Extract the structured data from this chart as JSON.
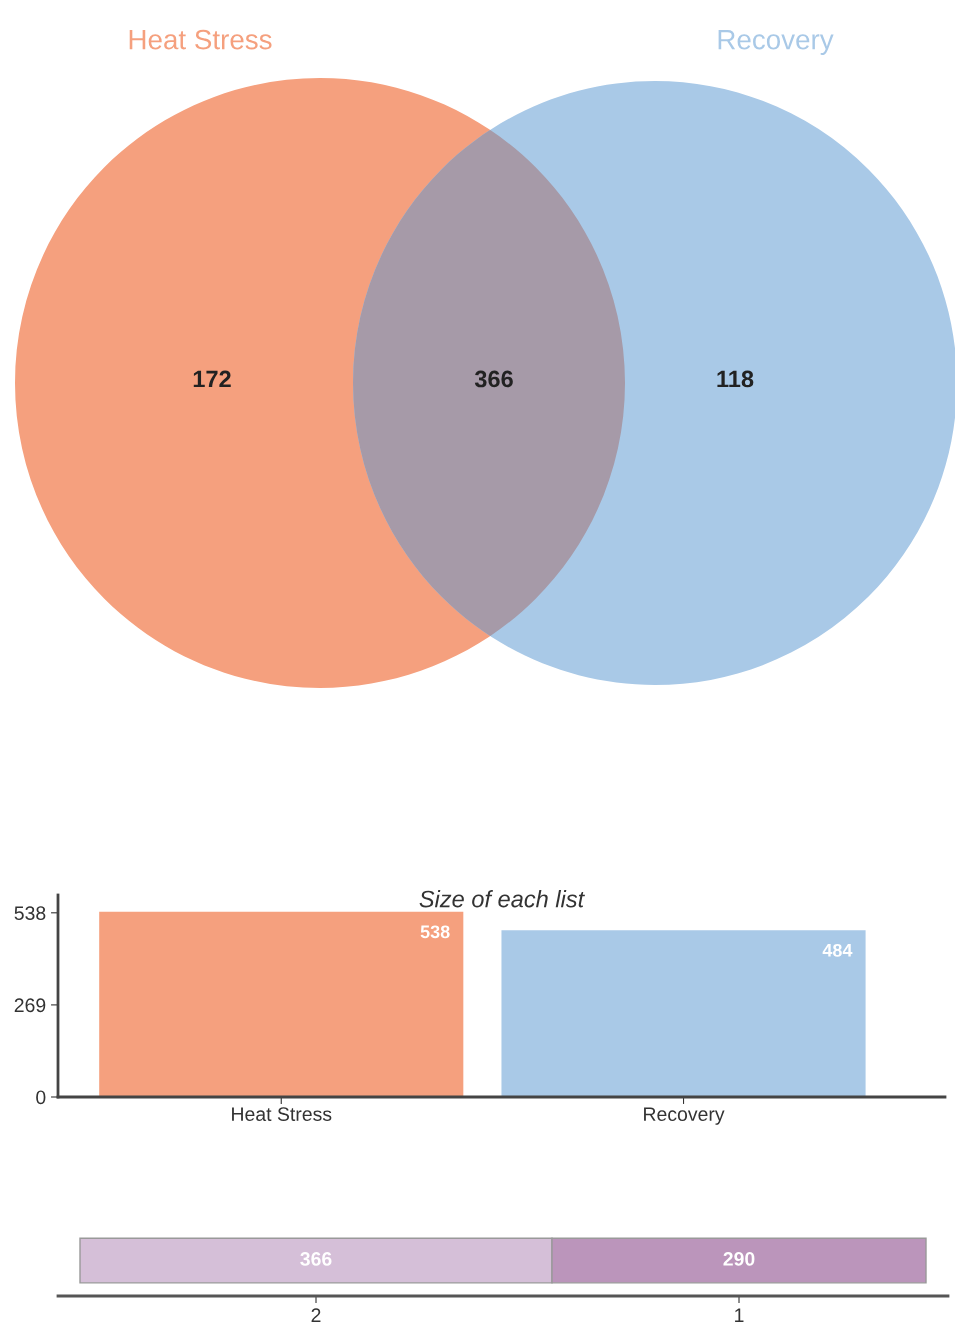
{
  "chart_data": [
    {
      "type": "other",
      "categories": [
        null,
        null,
        null
      ],
      "values": [
        172,
        366,
        118
      ],
      "data_labels": true,
      "annotations": [
        "Heat Stress",
        "Recovery"
      ],
      "colors": [
        "#f5a07e",
        "#a69aa8",
        "#a9c9e7"
      ]
    },
    {
      "type": "bar",
      "title": "Size of each list",
      "categories": [
        "Heat Stress",
        "Recovery"
      ],
      "values": [
        538,
        484
      ],
      "colors": [
        "#f5a07e",
        "#a9c9e7"
      ],
      "ylim": [
        0,
        590
      ],
      "yticks": [
        0,
        269,
        538
      ],
      "data_labels": true
    },
    {
      "type": "bar",
      "orientation": "horizontal",
      "stacked": true,
      "categories": [
        null
      ],
      "data_labels": true,
      "series": [
        {
          "name": "2",
          "color": "#d5bfd8",
          "values": [
            366
          ]
        },
        {
          "name": "1",
          "color": "#bb95bb",
          "values": [
            290
          ]
        }
      ]
    }
  ]
}
